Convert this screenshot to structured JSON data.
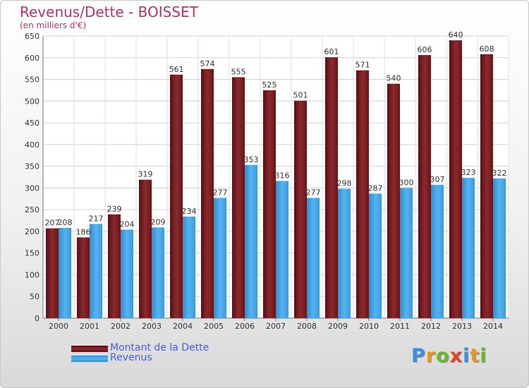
{
  "title": "Revenus/Dette - BOISSET",
  "subtitle": "(en milliers d'€)",
  "logo": {
    "letters": [
      "P",
      "r",
      "o",
      "x",
      "i",
      "t",
      "i"
    ],
    "colors": [
      "#3d8fdb",
      "#e8971e",
      "#6ab82e",
      "#e3432c",
      "#3d8fdb",
      "#e8971e",
      "#6ab82e"
    ]
  },
  "chart_data": {
    "type": "bar",
    "categories": [
      "2000",
      "2001",
      "2002",
      "2003",
      "2004",
      "2005",
      "2006",
      "2007",
      "2008",
      "2009",
      "2010",
      "2011",
      "2012",
      "2013",
      "2014"
    ],
    "series": [
      {
        "name": "Montant de la Dette",
        "color": "#7a1e22",
        "values": [
          207,
          186,
          239,
          319,
          561,
          574,
          555,
          525,
          501,
          601,
          571,
          540,
          606,
          640,
          608
        ]
      },
      {
        "name": "Revenus",
        "color": "#3fa0e0",
        "values": [
          208,
          217,
          204,
          209,
          234,
          277,
          353,
          316,
          277,
          298,
          287,
          300,
          307,
          323,
          322
        ]
      }
    ],
    "ylim": [
      0,
      650
    ],
    "yticks": [
      0,
      50,
      100,
      150,
      200,
      250,
      300,
      350,
      400,
      450,
      500,
      550,
      600,
      650
    ],
    "grid": true,
    "legend": "bottom-left"
  }
}
